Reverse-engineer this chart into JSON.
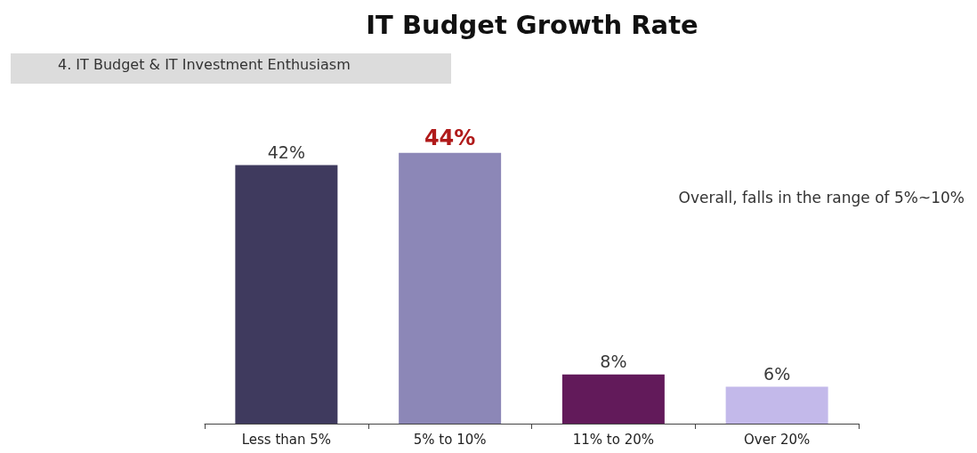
{
  "chart_data": {
    "type": "bar",
    "title": "IT Budget Growth Rate",
    "subtitle": "4. IT Budget & IT Investment Enthusiasm",
    "annotations": [
      "Overall, falls in the range of 5%~10%"
    ],
    "categories": [
      "Less than 5%",
      "5% to 10%",
      "11% to 20%",
      "Over 20%"
    ],
    "values": [
      42,
      44,
      8,
      6
    ],
    "colors": [
      "#3f3a5e",
      "#8c87b7",
      "#621a5a",
      "#c3b9ea"
    ],
    "value_labels": [
      "42%",
      "44%",
      "8%",
      "6%"
    ],
    "grid": false,
    "tick_labels": "x"
  }
}
